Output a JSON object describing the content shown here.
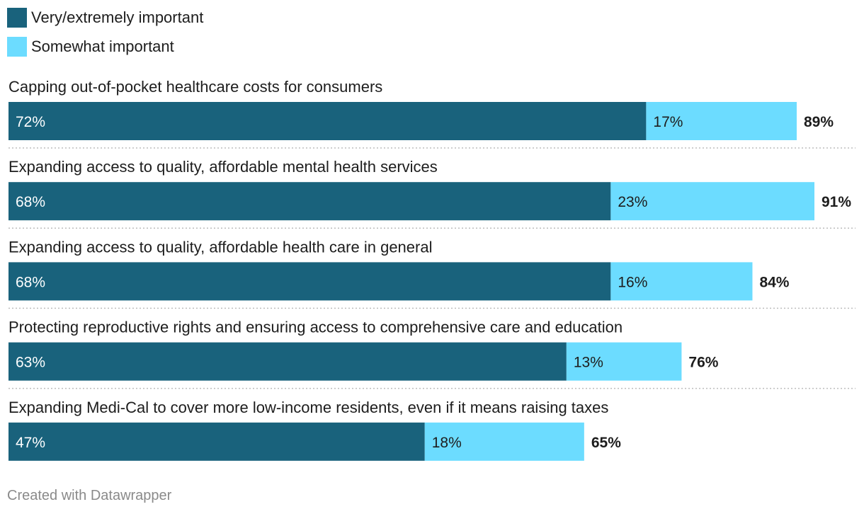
{
  "legend": [
    {
      "label": "Very/extremely important",
      "color": "#19627c"
    },
    {
      "label": "Somewhat important",
      "color": "#6cdcff"
    }
  ],
  "chart_data": {
    "type": "bar",
    "orientation": "horizontal",
    "stacked": true,
    "categories": [
      "Capping out-of-pocket healthcare costs for consumers",
      "Expanding access to quality, affordable mental health services",
      "Expanding access to quality, affordable health care in general",
      "Protecting reproductive rights and ensuring access to comprehensive care and education",
      "Expanding Medi-Cal to cover more low-income residents, even if it means raising taxes"
    ],
    "series": [
      {
        "name": "Very/extremely important",
        "values": [
          72,
          68,
          68,
          63,
          47
        ],
        "color": "#19627c"
      },
      {
        "name": "Somewhat important",
        "values": [
          17,
          23,
          16,
          13,
          18
        ],
        "color": "#6cdcff"
      }
    ],
    "totals": [
      89,
      91,
      84,
      76,
      65
    ],
    "value_suffix": "%",
    "xlim": [
      0,
      91
    ],
    "grid": false
  },
  "credit": "Created with Datawrapper"
}
